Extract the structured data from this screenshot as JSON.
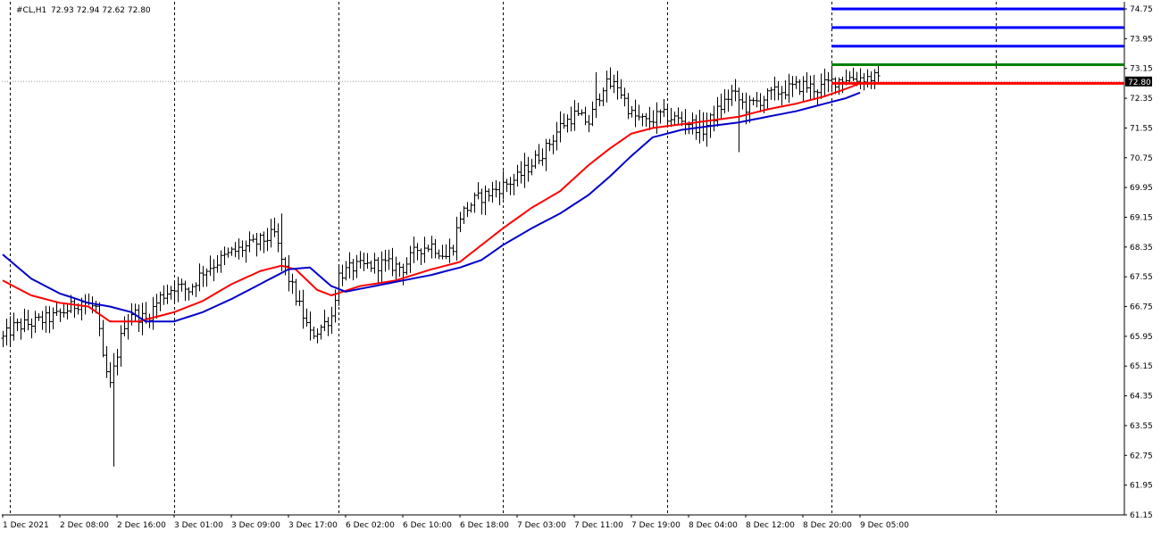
{
  "header": {
    "symbol": "#CL,H1",
    "ohlc": "72.93 72.94 72.62 72.80"
  },
  "current_price_label": "72.80",
  "colors": {
    "background": "#ffffff",
    "bar": "#000000",
    "fast_ma": "#ff0000",
    "slow_ma": "#0000cc",
    "level_blue": "#0000ff",
    "level_green": "#008000",
    "level_red": "#ff0000",
    "price_label_bg": "#000000",
    "price_label_text": "#ffffff",
    "separator": "#000000"
  },
  "chart_data": {
    "type": "ohlc",
    "timeframe": "H1",
    "ylim": [
      61.15,
      74.75
    ],
    "y_ticks": [
      "74.75",
      "73.95",
      "73.15",
      "72.35",
      "71.55",
      "70.75",
      "69.95",
      "69.15",
      "68.35",
      "67.55",
      "66.75",
      "65.95",
      "65.15",
      "64.35",
      "63.55",
      "62.75",
      "61.95",
      "61.15"
    ],
    "x_tick_labels": [
      {
        "i": 0,
        "label": "1 Dec 2021"
      },
      {
        "i": 16,
        "label": "2 Dec 08:00"
      },
      {
        "i": 32,
        "label": "2 Dec 16:00"
      },
      {
        "i": 48,
        "label": "3 Dec 01:00"
      },
      {
        "i": 64,
        "label": "3 Dec 09:00"
      },
      {
        "i": 80,
        "label": "3 Dec 17:00"
      },
      {
        "i": 96,
        "label": "6 Dec 02:00"
      },
      {
        "i": 112,
        "label": "6 Dec 10:00"
      },
      {
        "i": 128,
        "label": "6 Dec 18:00"
      },
      {
        "i": 144,
        "label": "7 Dec 03:00"
      },
      {
        "i": 160,
        "label": "7 Dec 11:00"
      },
      {
        "i": 176,
        "label": "7 Dec 19:00"
      },
      {
        "i": 192,
        "label": "8 Dec 04:00"
      },
      {
        "i": 208,
        "label": "8 Dec 12:00"
      },
      {
        "i": 224,
        "label": "8 Dec 20:00"
      },
      {
        "i": 240,
        "label": "9 Dec 05:00"
      }
    ],
    "day_separators": [
      2,
      48,
      94,
      140,
      186,
      232,
      278
    ],
    "bar_count": 246,
    "ohlc_keypoints": [
      [
        0,
        65.9
      ],
      [
        3,
        66.2
      ],
      [
        8,
        66.3
      ],
      [
        15,
        66.5
      ],
      [
        22,
        66.9
      ],
      [
        26,
        66.7
      ],
      [
        28,
        65.3
      ],
      [
        30,
        64.6
      ],
      [
        32,
        65.5
      ],
      [
        34,
        66.3
      ],
      [
        36,
        66.6
      ],
      [
        40,
        66.4
      ],
      [
        44,
        67.0
      ],
      [
        48,
        67.3
      ],
      [
        52,
        67.2
      ],
      [
        56,
        67.7
      ],
      [
        64,
        68.2
      ],
      [
        72,
        68.5
      ],
      [
        76,
        68.7
      ],
      [
        78,
        68.0
      ],
      [
        82,
        67.0
      ],
      [
        86,
        66.0
      ],
      [
        88,
        66.1
      ],
      [
        92,
        66.5
      ],
      [
        94,
        67.6
      ],
      [
        98,
        67.8
      ],
      [
        106,
        67.9
      ],
      [
        112,
        67.8
      ],
      [
        116,
        68.3
      ],
      [
        120,
        68.4
      ],
      [
        124,
        68.1
      ],
      [
        126,
        68.4
      ],
      [
        128,
        69.2
      ],
      [
        132,
        69.6
      ],
      [
        136,
        69.8
      ],
      [
        140,
        70.0
      ],
      [
        144,
        70.2
      ],
      [
        148,
        70.6
      ],
      [
        152,
        71.0
      ],
      [
        156,
        71.6
      ],
      [
        160,
        71.9
      ],
      [
        164,
        71.7
      ],
      [
        168,
        72.7
      ],
      [
        172,
        72.7
      ],
      [
        176,
        71.9
      ],
      [
        180,
        71.7
      ],
      [
        184,
        71.9
      ],
      [
        188,
        71.8
      ],
      [
        192,
        71.7
      ],
      [
        196,
        71.5
      ],
      [
        200,
        72.0
      ],
      [
        204,
        72.5
      ],
      [
        208,
        72.1
      ],
      [
        212,
        72.3
      ],
      [
        216,
        72.5
      ],
      [
        220,
        72.6
      ],
      [
        224,
        72.7
      ],
      [
        228,
        72.6
      ],
      [
        232,
        72.8
      ],
      [
        236,
        72.9
      ],
      [
        240,
        72.9
      ],
      [
        244,
        72.9
      ],
      [
        245,
        72.8
      ]
    ],
    "long_wicks": [
      {
        "i": 31,
        "low": 62.45
      },
      {
        "i": 78,
        "high": 69.25
      },
      {
        "i": 166,
        "high": 73.05
      },
      {
        "i": 206,
        "low": 70.9
      }
    ],
    "series": [
      {
        "kind": "moving-average",
        "color": "#ff0000",
        "points": [
          [
            0,
            67.45
          ],
          [
            8,
            67.05
          ],
          [
            16,
            66.85
          ],
          [
            24,
            66.75
          ],
          [
            30,
            66.35
          ],
          [
            38,
            66.35
          ],
          [
            48,
            66.6
          ],
          [
            56,
            66.9
          ],
          [
            64,
            67.35
          ],
          [
            72,
            67.7
          ],
          [
            78,
            67.85
          ],
          [
            82,
            67.75
          ],
          [
            88,
            67.2
          ],
          [
            92,
            67.05
          ],
          [
            100,
            67.3
          ],
          [
            110,
            67.45
          ],
          [
            120,
            67.75
          ],
          [
            128,
            67.95
          ],
          [
            134,
            68.4
          ],
          [
            140,
            68.85
          ],
          [
            148,
            69.4
          ],
          [
            156,
            69.85
          ],
          [
            164,
            70.55
          ],
          [
            170,
            71.0
          ],
          [
            176,
            71.4
          ],
          [
            182,
            71.55
          ],
          [
            190,
            71.65
          ],
          [
            198,
            71.75
          ],
          [
            206,
            71.85
          ],
          [
            214,
            72.05
          ],
          [
            222,
            72.2
          ],
          [
            230,
            72.4
          ],
          [
            236,
            72.6
          ],
          [
            240,
            72.75
          ]
        ]
      },
      {
        "kind": "moving-average",
        "color": "#0000cc",
        "points": [
          [
            0,
            68.15
          ],
          [
            8,
            67.5
          ],
          [
            16,
            67.1
          ],
          [
            24,
            66.85
          ],
          [
            30,
            66.75
          ],
          [
            36,
            66.6
          ],
          [
            40,
            66.35
          ],
          [
            48,
            66.35
          ],
          [
            56,
            66.6
          ],
          [
            64,
            66.95
          ],
          [
            72,
            67.35
          ],
          [
            80,
            67.75
          ],
          [
            86,
            67.8
          ],
          [
            92,
            67.3
          ],
          [
            96,
            67.15
          ],
          [
            104,
            67.3
          ],
          [
            112,
            67.45
          ],
          [
            120,
            67.6
          ],
          [
            128,
            67.8
          ],
          [
            134,
            68.0
          ],
          [
            140,
            68.4
          ],
          [
            148,
            68.85
          ],
          [
            156,
            69.25
          ],
          [
            164,
            69.75
          ],
          [
            170,
            70.25
          ],
          [
            176,
            70.8
          ],
          [
            182,
            71.3
          ],
          [
            190,
            71.5
          ],
          [
            198,
            71.6
          ],
          [
            206,
            71.7
          ],
          [
            214,
            71.85
          ],
          [
            222,
            72.0
          ],
          [
            230,
            72.2
          ],
          [
            236,
            72.35
          ],
          [
            240,
            72.5
          ]
        ]
      }
    ],
    "horizontal_levels": [
      {
        "price": 74.75,
        "color": "#0000ff",
        "from_i": 232
      },
      {
        "price": 74.25,
        "color": "#0000ff",
        "from_i": 232
      },
      {
        "price": 73.75,
        "color": "#0000ff",
        "from_i": 232
      },
      {
        "price": 73.25,
        "color": "#008000",
        "from_i": 232
      },
      {
        "price": 72.75,
        "color": "#ff0000",
        "from_i": 232
      }
    ],
    "current_price": 72.8
  }
}
